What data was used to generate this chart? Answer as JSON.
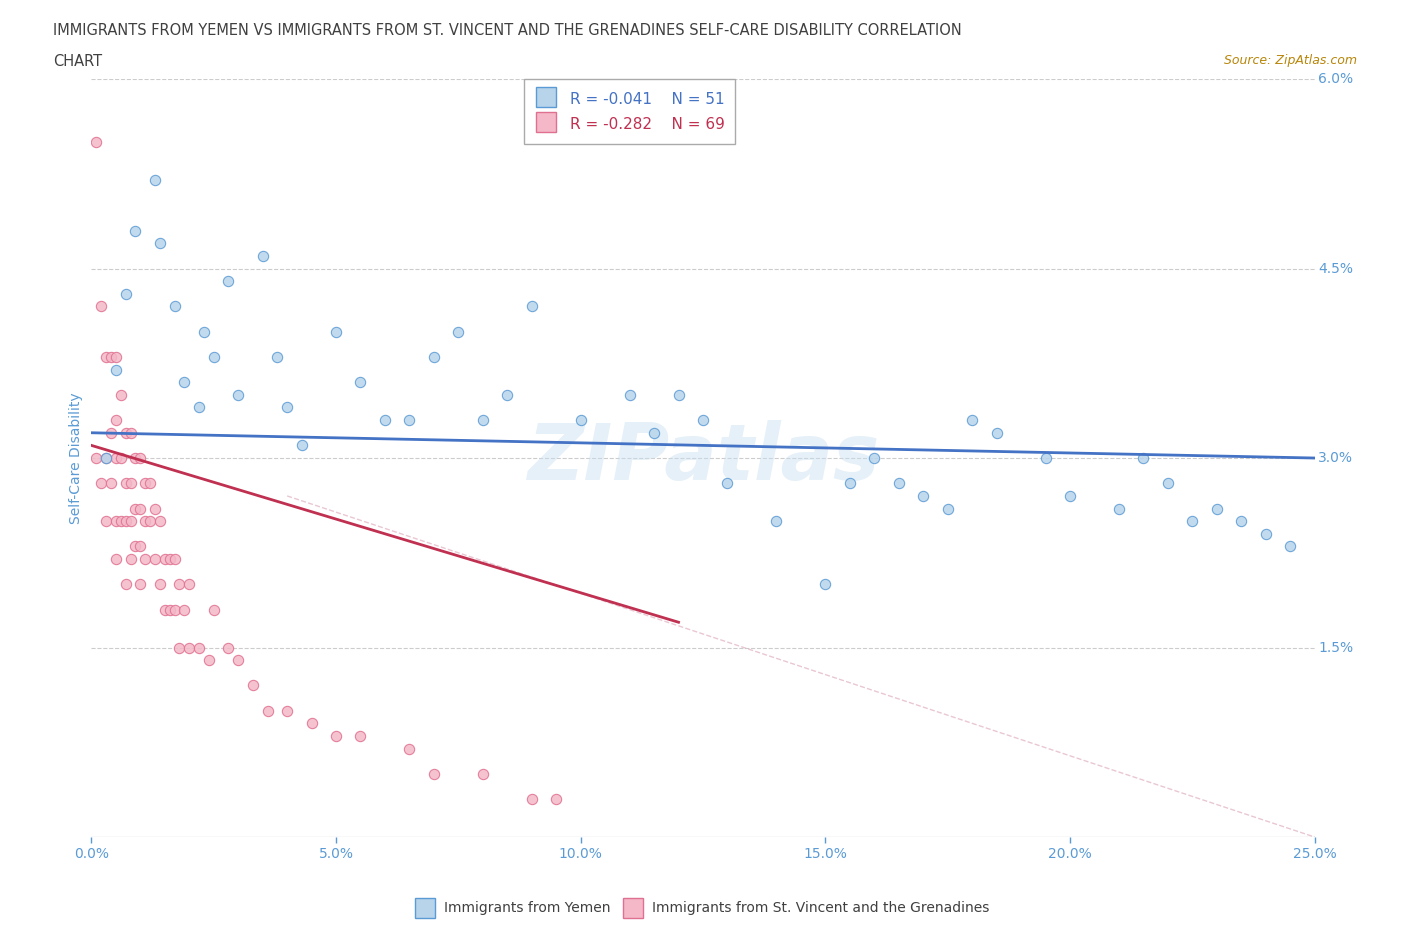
{
  "title_line1": "IMMIGRANTS FROM YEMEN VS IMMIGRANTS FROM ST. VINCENT AND THE GRENADINES SELF-CARE DISABILITY CORRELATION",
  "title_line2": "CHART",
  "source": "Source: ZipAtlas.com",
  "ylabel": "Self-Care Disability",
  "xlim": [
    0.0,
    0.25
  ],
  "ylim": [
    0.0,
    0.06
  ],
  "xticks": [
    0.0,
    0.05,
    0.1,
    0.15,
    0.2,
    0.25
  ],
  "xticklabels": [
    "0.0%",
    "5.0%",
    "10.0%",
    "15.0%",
    "20.0%",
    "25.0%"
  ],
  "yticks_right": [
    0.015,
    0.03,
    0.045,
    0.06
  ],
  "yticks_right_labels": [
    "1.5%",
    "3.0%",
    "4.5%",
    "6.0%"
  ],
  "series1_color": "#b8d4eb",
  "series1_edge": "#5b9bd5",
  "series2_color": "#f4b8c8",
  "series2_edge": "#e07090",
  "trend1_color": "#4472c4",
  "trend2_color": "#c0304060",
  "trend2_color_solid": "#c03050",
  "diag_color": "#ddbbcc",
  "legend_r1": "R = -0.041",
  "legend_n1": "N = 51",
  "legend_r2": "R = -0.282",
  "legend_n2": "N = 69",
  "legend_label1": "Immigrants from Yemen",
  "legend_label2": "Immigrants from St. Vincent and the Grenadines",
  "watermark": "ZIPatlas",
  "series1_x": [
    0.003,
    0.005,
    0.007,
    0.009,
    0.013,
    0.014,
    0.017,
    0.019,
    0.022,
    0.023,
    0.025,
    0.028,
    0.03,
    0.035,
    0.038,
    0.04,
    0.043,
    0.05,
    0.055,
    0.06,
    0.065,
    0.07,
    0.075,
    0.08,
    0.085,
    0.09,
    0.1,
    0.11,
    0.115,
    0.12,
    0.125,
    0.13,
    0.14,
    0.15,
    0.155,
    0.16,
    0.165,
    0.17,
    0.175,
    0.18,
    0.185,
    0.195,
    0.2,
    0.21,
    0.215,
    0.22,
    0.225,
    0.23,
    0.235,
    0.24,
    0.245
  ],
  "series1_y": [
    0.03,
    0.037,
    0.043,
    0.048,
    0.052,
    0.047,
    0.042,
    0.036,
    0.034,
    0.04,
    0.038,
    0.044,
    0.035,
    0.046,
    0.038,
    0.034,
    0.031,
    0.04,
    0.036,
    0.033,
    0.033,
    0.038,
    0.04,
    0.033,
    0.035,
    0.042,
    0.033,
    0.035,
    0.032,
    0.035,
    0.033,
    0.028,
    0.025,
    0.02,
    0.028,
    0.03,
    0.028,
    0.027,
    0.026,
    0.033,
    0.032,
    0.03,
    0.027,
    0.026,
    0.03,
    0.028,
    0.025,
    0.026,
    0.025,
    0.024,
    0.023
  ],
  "series2_x": [
    0.001,
    0.001,
    0.002,
    0.002,
    0.003,
    0.003,
    0.003,
    0.004,
    0.004,
    0.004,
    0.005,
    0.005,
    0.005,
    0.005,
    0.005,
    0.006,
    0.006,
    0.006,
    0.007,
    0.007,
    0.007,
    0.007,
    0.008,
    0.008,
    0.008,
    0.008,
    0.009,
    0.009,
    0.009,
    0.01,
    0.01,
    0.01,
    0.01,
    0.011,
    0.011,
    0.011,
    0.012,
    0.012,
    0.013,
    0.013,
    0.014,
    0.014,
    0.015,
    0.015,
    0.016,
    0.016,
    0.017,
    0.017,
    0.018,
    0.018,
    0.019,
    0.02,
    0.02,
    0.022,
    0.024,
    0.025,
    0.028,
    0.03,
    0.033,
    0.036,
    0.04,
    0.045,
    0.05,
    0.055,
    0.065,
    0.07,
    0.08,
    0.09,
    0.095
  ],
  "series2_y": [
    0.055,
    0.03,
    0.042,
    0.028,
    0.038,
    0.03,
    0.025,
    0.038,
    0.032,
    0.028,
    0.038,
    0.033,
    0.03,
    0.025,
    0.022,
    0.035,
    0.03,
    0.025,
    0.032,
    0.028,
    0.025,
    0.02,
    0.032,
    0.028,
    0.025,
    0.022,
    0.03,
    0.026,
    0.023,
    0.03,
    0.026,
    0.023,
    0.02,
    0.028,
    0.025,
    0.022,
    0.028,
    0.025,
    0.026,
    0.022,
    0.025,
    0.02,
    0.022,
    0.018,
    0.022,
    0.018,
    0.022,
    0.018,
    0.02,
    0.015,
    0.018,
    0.02,
    0.015,
    0.015,
    0.014,
    0.018,
    0.015,
    0.014,
    0.012,
    0.01,
    0.01,
    0.009,
    0.008,
    0.008,
    0.007,
    0.005,
    0.005,
    0.003,
    0.003
  ],
  "background_color": "#ffffff",
  "grid_color": "#cccccc",
  "title_color": "#404040",
  "axis_color": "#5b9bd5",
  "tick_color": "#5b9bd5"
}
